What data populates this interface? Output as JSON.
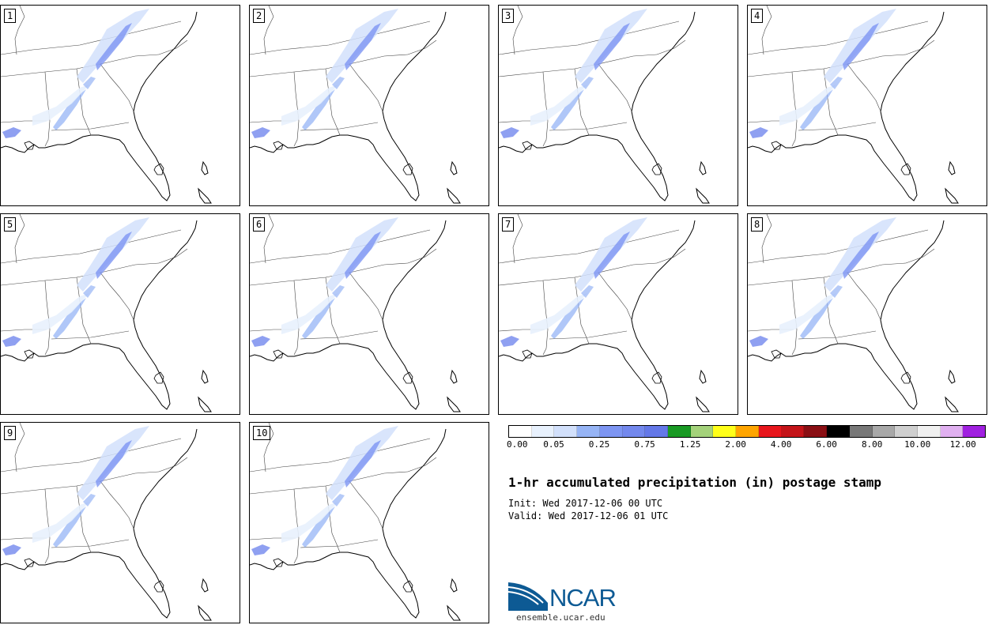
{
  "panels": [
    {
      "label": "1"
    },
    {
      "label": "2"
    },
    {
      "label": "3"
    },
    {
      "label": "4"
    },
    {
      "label": "5"
    },
    {
      "label": "6"
    },
    {
      "label": "7"
    },
    {
      "label": "8"
    },
    {
      "label": "9"
    },
    {
      "label": "10"
    }
  ],
  "colorbar": {
    "colors": [
      "#ffffff",
      "#e8f1fd",
      "#d2e0fb",
      "#96b4f5",
      "#7d95f2",
      "#7388ed",
      "#6478e8",
      "#199a24",
      "#a4d27a",
      "#ffff19",
      "#ffa500",
      "#e8161c",
      "#c41419",
      "#8a0f14",
      "#000000",
      "#787878",
      "#a8a8a8",
      "#cfcfcf",
      "#f0f0f0",
      "#e0b0f0",
      "#a020e0"
    ],
    "tick_labels": [
      "0.00",
      "0.05",
      "0.25",
      "0.75",
      "1.25",
      "2.00",
      "4.00",
      "6.00",
      "8.00",
      "10.00",
      "12.00"
    ]
  },
  "title": "1-hr accumulated precipitation (in) postage stamp",
  "init": "Init: Wed 2017-12-06 00 UTC",
  "valid": "Valid: Wed 2017-12-06 01 UTC",
  "logo": {
    "name": "NCAR",
    "url": "ensemble.ucar.edu"
  }
}
